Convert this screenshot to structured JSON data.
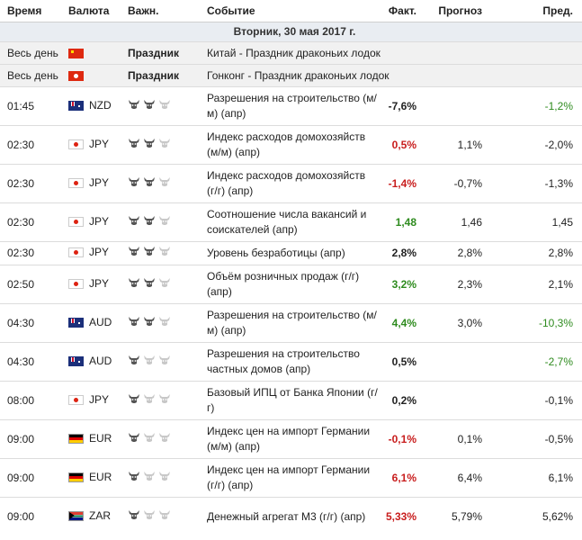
{
  "headers": {
    "time": "Время",
    "currency": "Валюта",
    "importance": "Важн.",
    "event": "Событие",
    "actual": "Факт.",
    "forecast": "Прогноз",
    "previous": "Пред."
  },
  "date_label": "Вторник, 30 мая 2017 г.",
  "holidays": [
    {
      "time": "Весь день",
      "flag": "cn",
      "importance": "Праздник",
      "event": "Китай - Праздник драконьих лодок"
    },
    {
      "time": "Весь день",
      "flag": "hk",
      "importance": "Праздник",
      "event": "Гонконг - Праздник драконьих лодок"
    }
  ],
  "events": [
    {
      "time": "01:45",
      "flag": "nz",
      "currency": "NZD",
      "bulls": 2,
      "event": "Разрешения на строительство (м/м) (апр)",
      "actual": "-7,6%",
      "actual_color": "black",
      "forecast": "",
      "previous": "-1,2%",
      "previous_color": "green"
    },
    {
      "time": "02:30",
      "flag": "jp",
      "currency": "JPY",
      "bulls": 2,
      "event": "Индекс расходов домохозяйств (м/м) (апр)",
      "actual": "0,5%",
      "actual_color": "red",
      "forecast": "1,1%",
      "previous": "-2,0%",
      "previous_color": "black"
    },
    {
      "time": "02:30",
      "flag": "jp",
      "currency": "JPY",
      "bulls": 2,
      "event": "Индекс расходов домохозяйств (г/г) (апр)",
      "actual": "-1,4%",
      "actual_color": "red",
      "forecast": "-0,7%",
      "previous": "-1,3%",
      "previous_color": "black"
    },
    {
      "time": "02:30",
      "flag": "jp",
      "currency": "JPY",
      "bulls": 2,
      "event": "Соотношение числа вакансий и соискателей (апр)",
      "actual": "1,48",
      "actual_color": "green",
      "forecast": "1,46",
      "previous": "1,45",
      "previous_color": "black"
    },
    {
      "time": "02:30",
      "flag": "jp",
      "currency": "JPY",
      "bulls": 2,
      "event": "Уровень безработицы (апр)",
      "actual": "2,8%",
      "actual_color": "black",
      "forecast": "2,8%",
      "previous": "2,8%",
      "previous_color": "black"
    },
    {
      "time": "02:50",
      "flag": "jp",
      "currency": "JPY",
      "bulls": 2,
      "event": "Объём розничных продаж (г/г) (апр)",
      "actual": "3,2%",
      "actual_color": "green",
      "forecast": "2,3%",
      "previous": "2,1%",
      "previous_color": "black"
    },
    {
      "time": "04:30",
      "flag": "au",
      "currency": "AUD",
      "bulls": 2,
      "event": "Разрешения на строительство (м/м) (апр)",
      "actual": "4,4%",
      "actual_color": "green",
      "forecast": "3,0%",
      "previous": "-10,3%",
      "previous_color": "green"
    },
    {
      "time": "04:30",
      "flag": "au",
      "currency": "AUD",
      "bulls": 1,
      "event": "Разрешения на строительство частных домов (апр)",
      "actual": "0,5%",
      "actual_color": "black",
      "forecast": "",
      "previous": "-2,7%",
      "previous_color": "green"
    },
    {
      "time": "08:00",
      "flag": "jp",
      "currency": "JPY",
      "bulls": 1,
      "event": "Базовый ИПЦ от Банка Японии (г/г)",
      "actual": "0,2%",
      "actual_color": "black",
      "forecast": "",
      "previous": "-0,1%",
      "previous_color": "black"
    },
    {
      "time": "09:00",
      "flag": "de",
      "currency": "EUR",
      "bulls": 1,
      "event": "Индекс цен на импорт Германии (м/м) (апр)",
      "actual": "-0,1%",
      "actual_color": "red",
      "forecast": "0,1%",
      "previous": "-0,5%",
      "previous_color": "black"
    },
    {
      "time": "09:00",
      "flag": "de",
      "currency": "EUR",
      "bulls": 1,
      "event": "Индекс цен на импорт Германии (г/г) (апр)",
      "actual": "6,1%",
      "actual_color": "red",
      "forecast": "6,4%",
      "previous": "6,1%",
      "previous_color": "black"
    },
    {
      "time": "09:00",
      "flag": "za",
      "currency": "ZAR",
      "bulls": 1,
      "event": "Денежный агрегат М3 (г/г) (апр)",
      "actual": "5,33%",
      "actual_color": "red",
      "forecast": "5,79%",
      "previous": "5,62%",
      "previous_color": "black"
    }
  ]
}
